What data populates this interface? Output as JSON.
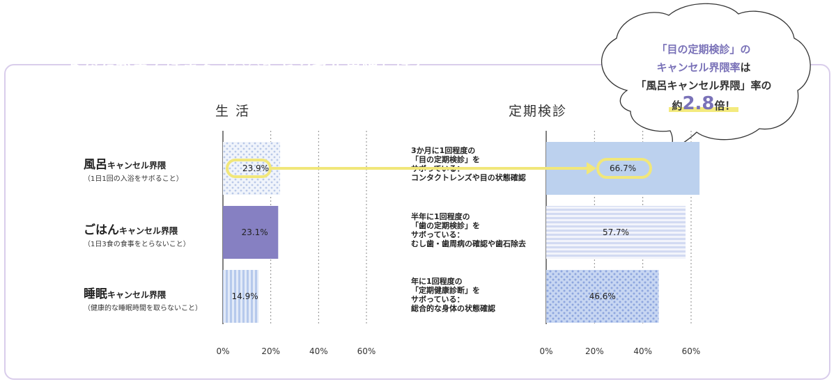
{
  "colors": {
    "banner_bg": "#7a72b8",
    "pill_bg": "#f5ec8a",
    "frame": "#d9cdeb",
    "arrow": "#f1e77a",
    "bar_dots_light": "#dde6f5",
    "bar_solid_purple": "#8680c2",
    "bar_stripes_blue": "#c2d2ef",
    "bar_solid_blue": "#bcd1ee",
    "bar_hstripes": "#dbe1f5",
    "bar_dots_blue": "#a9bde8"
  },
  "banner": {
    "title": "あなたが当てはまる「○○キャンセル界隈」は？"
  },
  "bubble": {
    "line1": "「目の定期検診」の",
    "line2_a": "キャンセル界隈率",
    "line2_b": "は",
    "line3": "「風呂キャンセル界隈」率の",
    "prefix": "約",
    "value": "2.8",
    "suffix": "倍！"
  },
  "categories": [
    {
      "title_main": "風呂",
      "title_small": "キャンセル界隈",
      "note": "（1日1回の入浴をサボること）"
    },
    {
      "title_main": "ごはん",
      "title_small": "キャンセル界隈",
      "note": "（1日3食の食事をとらないこと）"
    },
    {
      "title_main": "睡眠",
      "title_small": "キャンセル界隈",
      "note": "（健康的な睡眠時間を取らないこと）"
    }
  ],
  "checkups": [
    {
      "lines": "3か月に1回程度の\n「目の定期検診」を\nサボっている：\nコンタクトレンズや目の状態確認"
    },
    {
      "lines": "半年に1回程度の\n「歯の定期検診」を\nサボっている：\nむし歯・歯周病の確認や歯石除去"
    },
    {
      "lines": "年に1回程度の\n「定期健康診断」を\nサボっている：\n総合的な身体の状態確認"
    }
  ],
  "chart_data": [
    {
      "type": "bar",
      "title": "生 活",
      "orientation": "horizontal",
      "categories": [
        "風呂キャンセル界隈",
        "ごはんキャンセル界隈",
        "睡眠キャンセル界隈"
      ],
      "values": [
        23.9,
        23.1,
        14.9
      ],
      "value_labels": [
        "23.9%",
        "23.1%",
        "14.9%"
      ],
      "xlim": [
        0,
        60
      ],
      "xticks": [
        "0%",
        "20%",
        "40%",
        "60%"
      ],
      "grid": true
    },
    {
      "type": "bar",
      "title": "定期検診",
      "orientation": "horizontal",
      "categories": [
        "「目の定期検診」",
        "「歯の定期検診」",
        "「定期健康診断」"
      ],
      "values": [
        66.7,
        57.7,
        46.6
      ],
      "value_labels": [
        "66.7%",
        "57.7%",
        "46.6%"
      ],
      "xlim": [
        0,
        60
      ],
      "xticks": [
        "0%",
        "20%",
        "40%",
        "60%"
      ],
      "grid": true
    }
  ]
}
